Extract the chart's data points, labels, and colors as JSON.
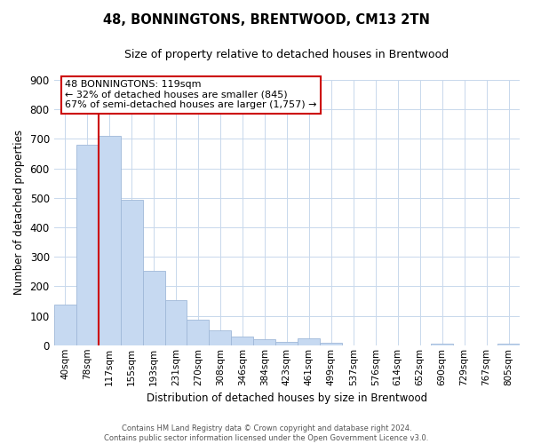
{
  "title": "48, BONNINGTONS, BRENTWOOD, CM13 2TN",
  "subtitle": "Size of property relative to detached houses in Brentwood",
  "xlabel": "Distribution of detached houses by size in Brentwood",
  "ylabel": "Number of detached properties",
  "bar_labels": [
    "40sqm",
    "78sqm",
    "117sqm",
    "155sqm",
    "193sqm",
    "231sqm",
    "270sqm",
    "308sqm",
    "346sqm",
    "384sqm",
    "423sqm",
    "461sqm",
    "499sqm",
    "537sqm",
    "576sqm",
    "614sqm",
    "652sqm",
    "690sqm",
    "729sqm",
    "767sqm",
    "805sqm"
  ],
  "bar_values": [
    137,
    680,
    710,
    493,
    253,
    153,
    86,
    50,
    29,
    19,
    10,
    22,
    8,
    0,
    0,
    0,
    0,
    5,
    0,
    0,
    4
  ],
  "bar_color": "#c6d9f1",
  "bar_edge_color": "#a0b8d8",
  "ylim": [
    0,
    900
  ],
  "yticks": [
    0,
    100,
    200,
    300,
    400,
    500,
    600,
    700,
    800,
    900
  ],
  "property_line_color": "#cc0000",
  "annotation_title": "48 BONNINGTONS: 119sqm",
  "annotation_line1": "← 32% of detached houses are smaller (845)",
  "annotation_line2": "67% of semi-detached houses are larger (1,757) →",
  "annotation_box_color": "#ffffff",
  "annotation_box_edge": "#cc0000",
  "footer_line1": "Contains HM Land Registry data © Crown copyright and database right 2024.",
  "footer_line2": "Contains public sector information licensed under the Open Government Licence v3.0.",
  "background_color": "#ffffff",
  "grid_color": "#c8d8ec"
}
